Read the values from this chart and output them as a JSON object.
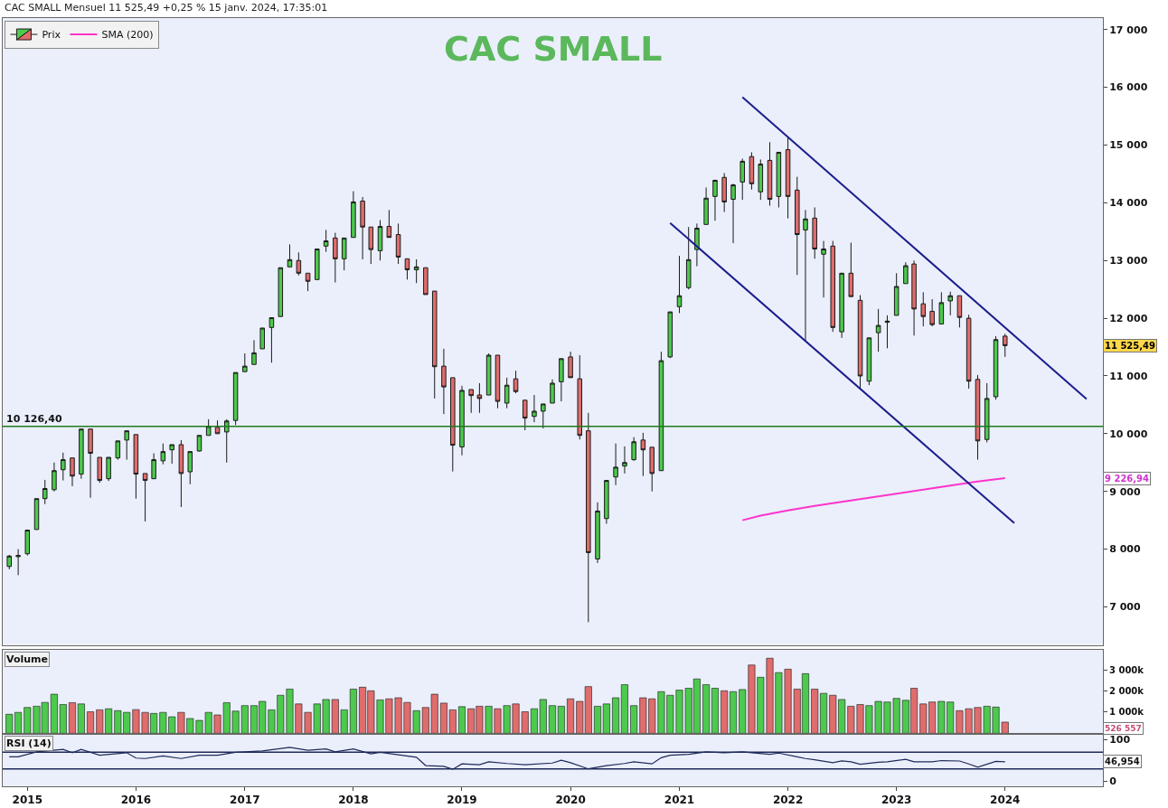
{
  "chart_data": [
    {
      "type": "candlestick",
      "title": "CAC SMALL",
      "subtitle": "CAC SMALL Mensuel 11 525,49 +0,25 % 15 janv. 2024, 17:35:01",
      "legend": "top left",
      "grid": false,
      "tick_labels": "y",
      "xlim": [
        "2014-10-10",
        "2024-11-25"
      ],
      "ylim": [
        6340,
        17200
      ],
      "yticks": [
        {
          "value": 7000,
          "label": "7 000"
        },
        {
          "value": 8000,
          "label": "8 000"
        },
        {
          "value": 9000,
          "label": "9 000"
        },
        {
          "value": 10000,
          "label": "10 000"
        },
        {
          "value": 11000,
          "label": "11 000"
        },
        {
          "value": 12000,
          "label": "12 000"
        },
        {
          "value": 13000,
          "label": "13 000"
        },
        {
          "value": 14000,
          "label": "14 000"
        },
        {
          "value": 15000,
          "label": "15 000"
        },
        {
          "value": 16000,
          "label": "16 000"
        },
        {
          "value": 17000,
          "label": "17 000"
        }
      ],
      "ref_lines": [
        {
          "axis": "y",
          "value": 10126.4,
          "label": "10 126,40",
          "color": "#1e7b1e"
        }
      ],
      "annotations": [
        "11 525,49",
        "9 226,94"
      ],
      "series": [
        {
          "name": "Prix",
          "type": "candlestick",
          "x": [
            "2014-11",
            "2014-12",
            "2015-01",
            "2015-02",
            "2015-03",
            "2015-04",
            "2015-05",
            "2015-06",
            "2015-07",
            "2015-08",
            "2015-09",
            "2015-10",
            "2015-11",
            "2015-12",
            "2016-01",
            "2016-02",
            "2016-03",
            "2016-04",
            "2016-05",
            "2016-06",
            "2016-07",
            "2016-08",
            "2016-09",
            "2016-10",
            "2016-11",
            "2016-12",
            "2017-01",
            "2017-02",
            "2017-03",
            "2017-04",
            "2017-05",
            "2017-06",
            "2017-07",
            "2017-08",
            "2017-09",
            "2017-10",
            "2017-11",
            "2017-12",
            "2018-01",
            "2018-02",
            "2018-03",
            "2018-04",
            "2018-05",
            "2018-06",
            "2018-07",
            "2018-08",
            "2018-09",
            "2018-10",
            "2018-11",
            "2018-12",
            "2019-01",
            "2019-02",
            "2019-03",
            "2019-04",
            "2019-05",
            "2019-06",
            "2019-07",
            "2019-08",
            "2019-09",
            "2019-10",
            "2019-11",
            "2019-12",
            "2020-01",
            "2020-02",
            "2020-03",
            "2020-04",
            "2020-05",
            "2020-06",
            "2020-07",
            "2020-08",
            "2020-09",
            "2020-10",
            "2020-11",
            "2020-12",
            "2021-01",
            "2021-02",
            "2021-03",
            "2021-04",
            "2021-05",
            "2021-06",
            "2021-07",
            "2021-08",
            "2021-09",
            "2021-10",
            "2021-11",
            "2021-12",
            "2022-01",
            "2022-02",
            "2022-03",
            "2022-04",
            "2022-05",
            "2022-06",
            "2022-07",
            "2022-08",
            "2022-09",
            "2022-10",
            "2022-11",
            "2022-12",
            "2023-01",
            "2023-02",
            "2023-03",
            "2023-04",
            "2023-05",
            "2023-06",
            "2023-07",
            "2023-08",
            "2023-09",
            "2023-10",
            "2023-11",
            "2023-12",
            "2024-01"
          ],
          "ohlc": [
            [
              7700,
              7900,
              7650,
              7880
            ],
            [
              7870,
              8000,
              7550,
              7890
            ],
            [
              7920,
              8330,
              7890,
              8330
            ],
            [
              8340,
              8875,
              8340,
              8875
            ],
            [
              8875,
              9200,
              8780,
              9050
            ],
            [
              9030,
              9500,
              9000,
              9360
            ],
            [
              9375,
              9670,
              9190,
              9550
            ],
            [
              9580,
              9580,
              9090,
              9265
            ],
            [
              9300,
              10080,
              9220,
              10080
            ],
            [
              10080,
              10080,
              8890,
              9660
            ],
            [
              9590,
              9590,
              9150,
              9190
            ],
            [
              9220,
              9590,
              9180,
              9590
            ],
            [
              9580,
              9875,
              9550,
              9875
            ],
            [
              9890,
              10050,
              9550,
              10050
            ],
            [
              9985,
              9985,
              8875,
              9300
            ],
            [
              9310,
              9310,
              8480,
              9190
            ],
            [
              9220,
              9660,
              9220,
              9550
            ],
            [
              9530,
              9830,
              9470,
              9690
            ],
            [
              9720,
              9810,
              9480,
              9810
            ],
            [
              9810,
              9890,
              8730,
              9310
            ],
            [
              9340,
              9690,
              9125,
              9690
            ],
            [
              9700,
              9970,
              9690,
              9970
            ],
            [
              9970,
              10250,
              9970,
              10125
            ],
            [
              10110,
              10230,
              10000,
              10000
            ],
            [
              10030,
              10250,
              9500,
              10220
            ],
            [
              10230,
              11060,
              10150,
              11060
            ],
            [
              11075,
              11390,
              11075,
              11170
            ],
            [
              11200,
              11620,
              11200,
              11400
            ],
            [
              11470,
              11830,
              11470,
              11830
            ],
            [
              11840,
              12010,
              11230,
              12010
            ],
            [
              12030,
              12875,
              12030,
              12875
            ],
            [
              12890,
              13280,
              12890,
              13015
            ],
            [
              13000,
              13140,
              12740,
              12780
            ],
            [
              12780,
              12780,
              12470,
              12640
            ],
            [
              12670,
              13200,
              12670,
              13200
            ],
            [
              13250,
              13530,
              13150,
              13340
            ],
            [
              13390,
              13480,
              12620,
              13030
            ],
            [
              13030,
              13390,
              12830,
              13390
            ],
            [
              13400,
              14200,
              13400,
              14015
            ],
            [
              14030,
              14100,
              13020,
              13580
            ],
            [
              13580,
              13580,
              12940,
              13190
            ],
            [
              13170,
              13700,
              13000,
              13590
            ],
            [
              13590,
              13875,
              13400,
              13400
            ],
            [
              13450,
              13640,
              12940,
              13060
            ],
            [
              13030,
              13030,
              12670,
              12840
            ],
            [
              12840,
              13020,
              12610,
              12890
            ],
            [
              12875,
              12875,
              12410,
              12410
            ],
            [
              12470,
              12470,
              10610,
              11160
            ],
            [
              11170,
              11470,
              10340,
              10810
            ],
            [
              10970,
              10970,
              9345,
              9800
            ],
            [
              9770,
              10830,
              9625,
              10750
            ],
            [
              10765,
              10765,
              10360,
              10660
            ],
            [
              10670,
              10875,
              10360,
              10610
            ],
            [
              10670,
              11390,
              10670,
              11360
            ],
            [
              11360,
              11360,
              10440,
              10560
            ],
            [
              10530,
              10970,
              10440,
              10840
            ],
            [
              10950,
              11090,
              10700,
              10730
            ],
            [
              10580,
              10580,
              10060,
              10270
            ],
            [
              10300,
              10670,
              10200,
              10390
            ],
            [
              10390,
              10515,
              10090,
              10515
            ],
            [
              10530,
              10940,
              10530,
              10875
            ],
            [
              10900,
              11300,
              10560,
              11300
            ],
            [
              11330,
              11420,
              10970,
              10970
            ],
            [
              10950,
              11360,
              9900,
              9970
            ],
            [
              10050,
              10360,
              6735,
              7940
            ],
            [
              7830,
              8810,
              7760,
              8660
            ],
            [
              8530,
              9190,
              8440,
              9190
            ],
            [
              9250,
              9830,
              9110,
              9420
            ],
            [
              9440,
              9780,
              9310,
              9500
            ],
            [
              9550,
              9940,
              9530,
              9860
            ],
            [
              9890,
              10015,
              9265,
              9720
            ],
            [
              9765,
              9765,
              9000,
              9310
            ],
            [
              9360,
              11420,
              9360,
              11265
            ],
            [
              11330,
              12110,
              11310,
              12110
            ],
            [
              12200,
              13080,
              12090,
              12390
            ],
            [
              12530,
              13580,
              12500,
              13015
            ],
            [
              13190,
              13640,
              12900,
              13560
            ],
            [
              13625,
              14265,
              13625,
              14080
            ],
            [
              14110,
              14400,
              13690,
              14390
            ],
            [
              14440,
              14515,
              13840,
              14015
            ],
            [
              14060,
              14330,
              13300,
              14310
            ],
            [
              14360,
              14765,
              14050,
              14720
            ],
            [
              14800,
              14875,
              14230,
              14330
            ],
            [
              14190,
              14750,
              14050,
              14670
            ],
            [
              14735,
              15050,
              13950,
              14060
            ],
            [
              14110,
              14875,
              13920,
              14875
            ],
            [
              14920,
              15125,
              13730,
              14110
            ],
            [
              14220,
              14450,
              12750,
              13450
            ],
            [
              13530,
              13875,
              11610,
              13720
            ],
            [
              13735,
              13920,
              13030,
              13200
            ],
            [
              13110,
              13340,
              12360,
              13200
            ],
            [
              13250,
              13340,
              11765,
              11840
            ],
            [
              11765,
              12780,
              11660,
              12780
            ],
            [
              12780,
              13310,
              12375,
              12375
            ],
            [
              12310,
              12400,
              10765,
              11000
            ],
            [
              10910,
              11660,
              10840,
              11660
            ],
            [
              11750,
              12160,
              11420,
              11875
            ],
            [
              11930,
              12050,
              11480,
              11950
            ],
            [
              12050,
              12780,
              12050,
              12550
            ],
            [
              12600,
              12970,
              12600,
              12910
            ],
            [
              12940,
              13000,
              11700,
              12160
            ],
            [
              12250,
              12450,
              11860,
              12030
            ],
            [
              12120,
              12330,
              11860,
              11890
            ],
            [
              11900,
              12450,
              11900,
              12270
            ],
            [
              12300,
              12460,
              12050,
              12390
            ],
            [
              12390,
              12390,
              11840,
              12015
            ],
            [
              12000,
              12060,
              10780,
              10910
            ],
            [
              10940,
              11015,
              9550,
              9875
            ],
            [
              9900,
              10875,
              9850,
              10610
            ],
            [
              10640,
              11690,
              10590,
              11630
            ],
            [
              11690,
              11730,
              11330,
              11525.49
            ]
          ]
        },
        {
          "name": "SMA (200)",
          "type": "line",
          "color": "#ff33cc",
          "x": [
            "2021-08",
            "2021-10",
            "2022-01",
            "2022-04",
            "2022-07",
            "2022-10",
            "2023-01",
            "2023-04",
            "2023-07",
            "2023-10",
            "2024-01"
          ],
          "values": [
            8500,
            8580,
            8670,
            8750,
            8820,
            8890,
            8960,
            9030,
            9100,
            9170,
            9230
          ]
        },
        {
          "type": "line",
          "color": "#1c1c8c",
          "x": [
            "2021-08",
            "2024-10"
          ],
          "values": [
            15830,
            10600
          ]
        },
        {
          "type": "line",
          "color": "#1c1c8c",
          "x": [
            "2020-12",
            "2024-02"
          ],
          "values": [
            13650,
            8450
          ]
        }
      ]
    },
    {
      "type": "bar",
      "title": "Volume",
      "grid": false,
      "tick_labels": "y",
      "xlim": [
        "2014-10-10",
        "2024-11-25"
      ],
      "ylim": [
        0,
        3960
      ],
      "yticks": [
        {
          "value": 1000,
          "label": "1 000k"
        },
        {
          "value": 2000,
          "label": "2 000k"
        },
        {
          "value": 3000,
          "label": "3 000k"
        }
      ],
      "annotations": [
        "526 557"
      ],
      "x": [
        "2014-11",
        "2014-12",
        "2015-01",
        "2015-02",
        "2015-03",
        "2015-04",
        "2015-05",
        "2015-06",
        "2015-07",
        "2015-08",
        "2015-09",
        "2015-10",
        "2015-11",
        "2015-12",
        "2016-01",
        "2016-02",
        "2016-03",
        "2016-04",
        "2016-05",
        "2016-06",
        "2016-07",
        "2016-08",
        "2016-09",
        "2016-10",
        "2016-11",
        "2016-12",
        "2017-01",
        "2017-02",
        "2017-03",
        "2017-04",
        "2017-05",
        "2017-06",
        "2017-07",
        "2017-08",
        "2017-09",
        "2017-10",
        "2017-11",
        "2017-12",
        "2018-01",
        "2018-02",
        "2018-03",
        "2018-04",
        "2018-05",
        "2018-06",
        "2018-07",
        "2018-08",
        "2018-09",
        "2018-10",
        "2018-11",
        "2018-12",
        "2019-01",
        "2019-02",
        "2019-03",
        "2019-04",
        "2019-05",
        "2019-06",
        "2019-07",
        "2019-08",
        "2019-09",
        "2019-10",
        "2019-11",
        "2019-12",
        "2020-01",
        "2020-02",
        "2020-03",
        "2020-04",
        "2020-05",
        "2020-06",
        "2020-07",
        "2020-08",
        "2020-09",
        "2020-10",
        "2020-11",
        "2020-12",
        "2021-01",
        "2021-02",
        "2021-03",
        "2021-04",
        "2021-05",
        "2021-06",
        "2021-07",
        "2021-08",
        "2021-09",
        "2021-10",
        "2021-11",
        "2021-12",
        "2022-01",
        "2022-02",
        "2022-03",
        "2022-04",
        "2022-05",
        "2022-06",
        "2022-07",
        "2022-08",
        "2022-09",
        "2022-10",
        "2022-11",
        "2022-12",
        "2023-01",
        "2023-02",
        "2023-03",
        "2023-04",
        "2023-05",
        "2023-06",
        "2023-07",
        "2023-08",
        "2023-09",
        "2023-10",
        "2023-11",
        "2023-12",
        "2024-01"
      ],
      "values": [
        900,
        990,
        1220,
        1280,
        1460,
        1850,
        1360,
        1450,
        1390,
        1020,
        1110,
        1160,
        1070,
        990,
        1120,
        990,
        940,
        990,
        780,
        990,
        700,
        610,
        990,
        870,
        1450,
        1050,
        1310,
        1310,
        1510,
        1110,
        1800,
        2090,
        1390,
        990,
        1390,
        1600,
        1600,
        1110,
        2090,
        2180,
        2010,
        1580,
        1630,
        1680,
        1460,
        1070,
        1220,
        1850,
        1430,
        1110,
        1260,
        1160,
        1280,
        1280,
        1160,
        1310,
        1390,
        1020,
        1160,
        1600,
        1310,
        1280,
        1630,
        1510,
        2210,
        1280,
        1390,
        1680,
        2300,
        1310,
        1680,
        1630,
        1970,
        1800,
        2040,
        2130,
        2570,
        2300,
        2130,
        2010,
        1970,
        2070,
        3230,
        2650,
        3550,
        2870,
        3030,
        2090,
        2820,
        2090,
        1890,
        1800,
        1600,
        1280,
        1360,
        1310,
        1510,
        1480,
        1650,
        1560,
        2130,
        1390,
        1480,
        1510,
        1480,
        1070,
        1160,
        1220,
        1280,
        1240,
        530
      ],
      "colors": [
        "#4dc94d",
        "#4dc94d",
        "#4dc94d",
        "#4dc94d",
        "#4dc94d",
        "#4dc94d",
        "#4dc94d",
        "#e06c6c",
        "#4dc94d",
        "#e06c6c",
        "#e06c6c",
        "#4dc94d",
        "#4dc94d",
        "#4dc94d",
        "#e06c6c",
        "#e06c6c",
        "#4dc94d",
        "#4dc94d",
        "#4dc94d",
        "#e06c6c",
        "#4dc94d",
        "#4dc94d",
        "#4dc94d",
        "#e06c6c",
        "#4dc94d",
        "#4dc94d",
        "#4dc94d",
        "#4dc94d",
        "#4dc94d",
        "#4dc94d",
        "#4dc94d",
        "#4dc94d",
        "#e06c6c",
        "#e06c6c",
        "#4dc94d",
        "#4dc94d",
        "#e06c6c",
        "#4dc94d",
        "#4dc94d",
        "#e06c6c",
        "#e06c6c",
        "#4dc94d",
        "#e06c6c",
        "#e06c6c",
        "#e06c6c",
        "#4dc94d",
        "#e06c6c",
        "#e06c6c",
        "#e06c6c",
        "#e06c6c",
        "#4dc94d",
        "#e06c6c",
        "#e06c6c",
        "#4dc94d",
        "#e06c6c",
        "#4dc94d",
        "#e06c6c",
        "#e06c6c",
        "#4dc94d",
        "#4dc94d",
        "#4dc94d",
        "#4dc94d",
        "#e06c6c",
        "#e06c6c",
        "#e06c6c",
        "#4dc94d",
        "#4dc94d",
        "#4dc94d",
        "#4dc94d",
        "#4dc94d",
        "#e06c6c",
        "#e06c6c",
        "#4dc94d",
        "#4dc94d",
        "#4dc94d",
        "#4dc94d",
        "#4dc94d",
        "#4dc94d",
        "#4dc94d",
        "#e06c6c",
        "#4dc94d",
        "#4dc94d",
        "#e06c6c",
        "#4dc94d",
        "#e06c6c",
        "#4dc94d",
        "#e06c6c",
        "#e06c6c",
        "#4dc94d",
        "#e06c6c",
        "#4dc94d",
        "#e06c6c",
        "#4dc94d",
        "#e06c6c",
        "#e06c6c",
        "#4dc94d",
        "#4dc94d",
        "#4dc94d",
        "#4dc94d",
        "#4dc94d",
        "#e06c6c",
        "#e06c6c",
        "#e06c6c",
        "#4dc94d",
        "#4dc94d",
        "#e06c6c",
        "#e06c6c",
        "#e06c6c",
        "#4dc94d",
        "#4dc94d",
        "#e06c6c"
      ]
    },
    {
      "type": "line",
      "title": "RSI (14)",
      "grid": false,
      "color": "#1f2a5a",
      "xlim": [
        "2014-10-10",
        "2024-11-25"
      ],
      "ylim": [
        -12,
        112
      ],
      "yticks": [
        0,
        100
      ],
      "xticks": [
        "2015",
        "2016",
        "2017",
        "2018",
        "2019",
        "2020",
        "2021",
        "2022",
        "2023",
        "2024"
      ],
      "ref_lines": [
        {
          "axis": "y",
          "value": 70,
          "color": "#1f2a5a"
        },
        {
          "axis": "y",
          "value": 30,
          "color": "#1f2a5a"
        }
      ],
      "annotations": [
        "46,954"
      ],
      "x": [
        "2014-11",
        "2014-12",
        "2015-02",
        "2015-05",
        "2015-06",
        "2015-07",
        "2015-09",
        "2015-12",
        "2016-01",
        "2016-02",
        "2016-04",
        "2016-06",
        "2016-08",
        "2016-10",
        "2016-12",
        "2017-03",
        "2017-06",
        "2017-08",
        "2017-10",
        "2017-11",
        "2018-01",
        "2018-03",
        "2018-04",
        "2018-08",
        "2018-09",
        "2018-11",
        "2018-12",
        "2019-01",
        "2019-03",
        "2019-04",
        "2019-06",
        "2019-08",
        "2019-11",
        "2019-12",
        "2020-01",
        "2020-03",
        "2020-05",
        "2020-07",
        "2020-08",
        "2020-10",
        "2020-11",
        "2020-12",
        "2021-02",
        "2021-04",
        "2021-06",
        "2021-08",
        "2021-09",
        "2021-11",
        "2021-12",
        "2022-02",
        "2022-03",
        "2022-04",
        "2022-06",
        "2022-07",
        "2022-08",
        "2022-09",
        "2022-11",
        "2022-12",
        "2023-02",
        "2023-03",
        "2023-05",
        "2023-06",
        "2023-08",
        "2023-09",
        "2023-10",
        "2023-12",
        "2024-01"
      ],
      "values": [
        59,
        59,
        71,
        77,
        69,
        77,
        63,
        69,
        56,
        55,
        61,
        55,
        63,
        63,
        70,
        73,
        82,
        75,
        78,
        71,
        78,
        66,
        70,
        58,
        38,
        36,
        29,
        42,
        40,
        47,
        43,
        40,
        44,
        51,
        45,
        30,
        38,
        43,
        47,
        42,
        57,
        63,
        65,
        71,
        69,
        71,
        69,
        65,
        68,
        59,
        55,
        52,
        45,
        49,
        47,
        41,
        46,
        47,
        53,
        47,
        47,
        50,
        49,
        42,
        34,
        48,
        47
      ]
    }
  ]
}
